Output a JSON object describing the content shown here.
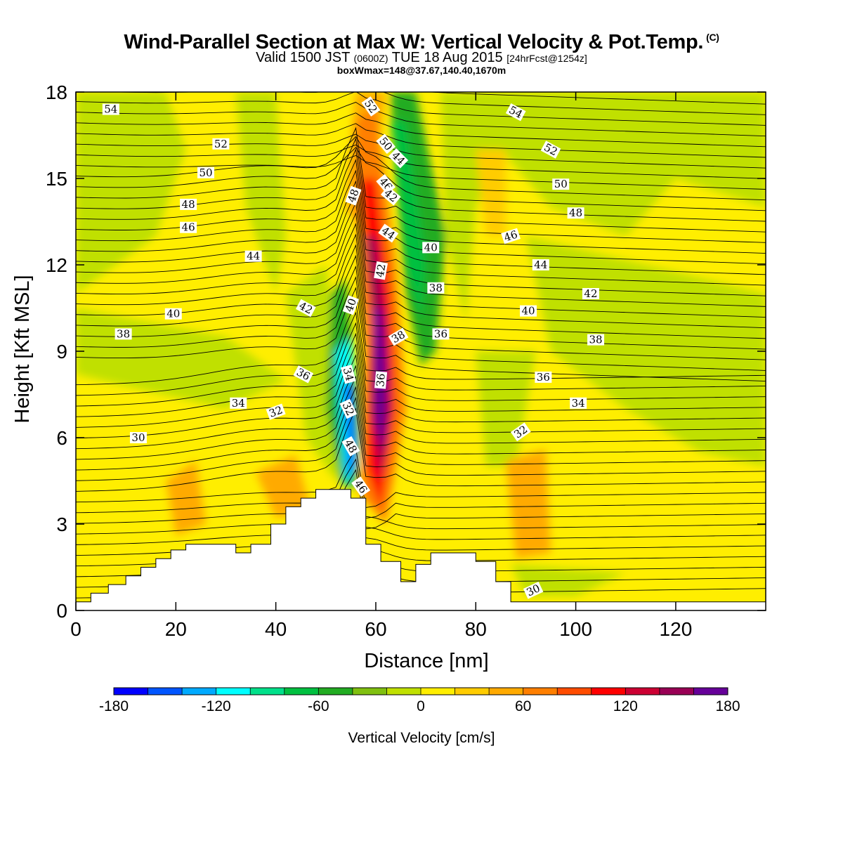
{
  "header": {
    "title": "Wind-Parallel Section at Max W: Vertical Velocity & Pot.Temp.",
    "copyright": "(C)",
    "valid_prefix": "Valid 1500 JST",
    "valid_utc": "(0600Z)",
    "valid_date": "TUE 18 Aug 2015",
    "forecast": "[24hrFcst@1254z]",
    "box_info": "boxWmax=148@37.67,140.40,1670m"
  },
  "chart_data": {
    "type": "heatmap",
    "xlabel": "Distance [nm]",
    "ylabel": "Height [Kft MSL]",
    "xlim": [
      0,
      138
    ],
    "ylim": [
      0,
      18
    ],
    "x_ticks": [
      "0",
      "20",
      "40",
      "60",
      "80",
      "100",
      "120"
    ],
    "y_ticks": [
      "0",
      "3",
      "6",
      "9",
      "12",
      "15",
      "18"
    ],
    "colorbar": {
      "label": "Vertical Velocity [cm/s]",
      "range": [
        -180,
        180
      ],
      "step": 20,
      "tick_labels": [
        "-180",
        "-120",
        "-60",
        "0",
        "60",
        "120",
        "180"
      ],
      "colors": [
        "#0000ff",
        "#0055ff",
        "#00aaff",
        "#00ffff",
        "#00e08a",
        "#00c040",
        "#22ac22",
        "#80c010",
        "#c0e000",
        "#ffee00",
        "#ffcc00",
        "#ffaa00",
        "#ff7f00",
        "#ff4c00",
        "#ff0000",
        "#cc0033",
        "#990055",
        "#660099"
      ]
    },
    "theta_contour_labels": [
      "54",
      "52",
      "50",
      "48",
      "46",
      "44",
      "42",
      "40",
      "38",
      "36",
      "34",
      "32",
      "30",
      "54",
      "52",
      "50",
      "48",
      "46",
      "44",
      "42",
      "40",
      "38",
      "36",
      "34",
      "32",
      "30",
      "52",
      "50",
      "48",
      "46",
      "44",
      "42",
      "40",
      "38",
      "36",
      "34",
      "32",
      "48",
      "46",
      "44",
      "42",
      "40",
      "38",
      "36"
    ],
    "theta_contour_values": [
      30,
      32,
      34,
      36,
      38,
      40,
      42,
      44,
      46,
      48,
      50,
      52,
      54
    ],
    "terrain_kft": [
      [
        0,
        0.3
      ],
      [
        3,
        0.3
      ],
      [
        3,
        0.6
      ],
      [
        6.5,
        0.6
      ],
      [
        6.5,
        0.9
      ],
      [
        10,
        0.9
      ],
      [
        10,
        1.2
      ],
      [
        13,
        1.2
      ],
      [
        13,
        1.5
      ],
      [
        16,
        1.5
      ],
      [
        16,
        1.8
      ],
      [
        19,
        1.8
      ],
      [
        19,
        2.1
      ],
      [
        22,
        2.1
      ],
      [
        22,
        2.3
      ],
      [
        23,
        2.3
      ],
      [
        32,
        2.3
      ],
      [
        32,
        2.0
      ],
      [
        35,
        2.0
      ],
      [
        35,
        2.3
      ],
      [
        39,
        2.3
      ],
      [
        39,
        3.0
      ],
      [
        42,
        3.0
      ],
      [
        42,
        3.6
      ],
      [
        45,
        3.6
      ],
      [
        45,
        3.9
      ],
      [
        48,
        3.9
      ],
      [
        48,
        4.2
      ],
      [
        51,
        4.2
      ],
      [
        55,
        4.2
      ],
      [
        55,
        3.9
      ],
      [
        58,
        3.9
      ],
      [
        58,
        2.3
      ],
      [
        61,
        2.3
      ],
      [
        61,
        1.7
      ],
      [
        65,
        1.7
      ],
      [
        65,
        1.0
      ],
      [
        68,
        1.0
      ],
      [
        68,
        1.6
      ],
      [
        71,
        1.6
      ],
      [
        71,
        2.0
      ],
      [
        80,
        2.0
      ],
      [
        80,
        1.7
      ],
      [
        84,
        1.7
      ],
      [
        84,
        1.0
      ],
      [
        87,
        1.0
      ],
      [
        87,
        0.3
      ],
      [
        138,
        0.3
      ]
    ],
    "vertical_velocity_features": [
      {
        "kind": "updraft",
        "x": 61,
        "y": 9.5,
        "peak_cms": 180
      },
      {
        "kind": "downdraft",
        "x": 55,
        "y": 6.5,
        "peak_cms": -160
      },
      {
        "kind": "downdraft",
        "x": 66,
        "y": 12.5,
        "peak_cms": -60
      },
      {
        "kind": "updraft",
        "x": 90,
        "y": 4,
        "peak_cms": 60
      }
    ]
  }
}
